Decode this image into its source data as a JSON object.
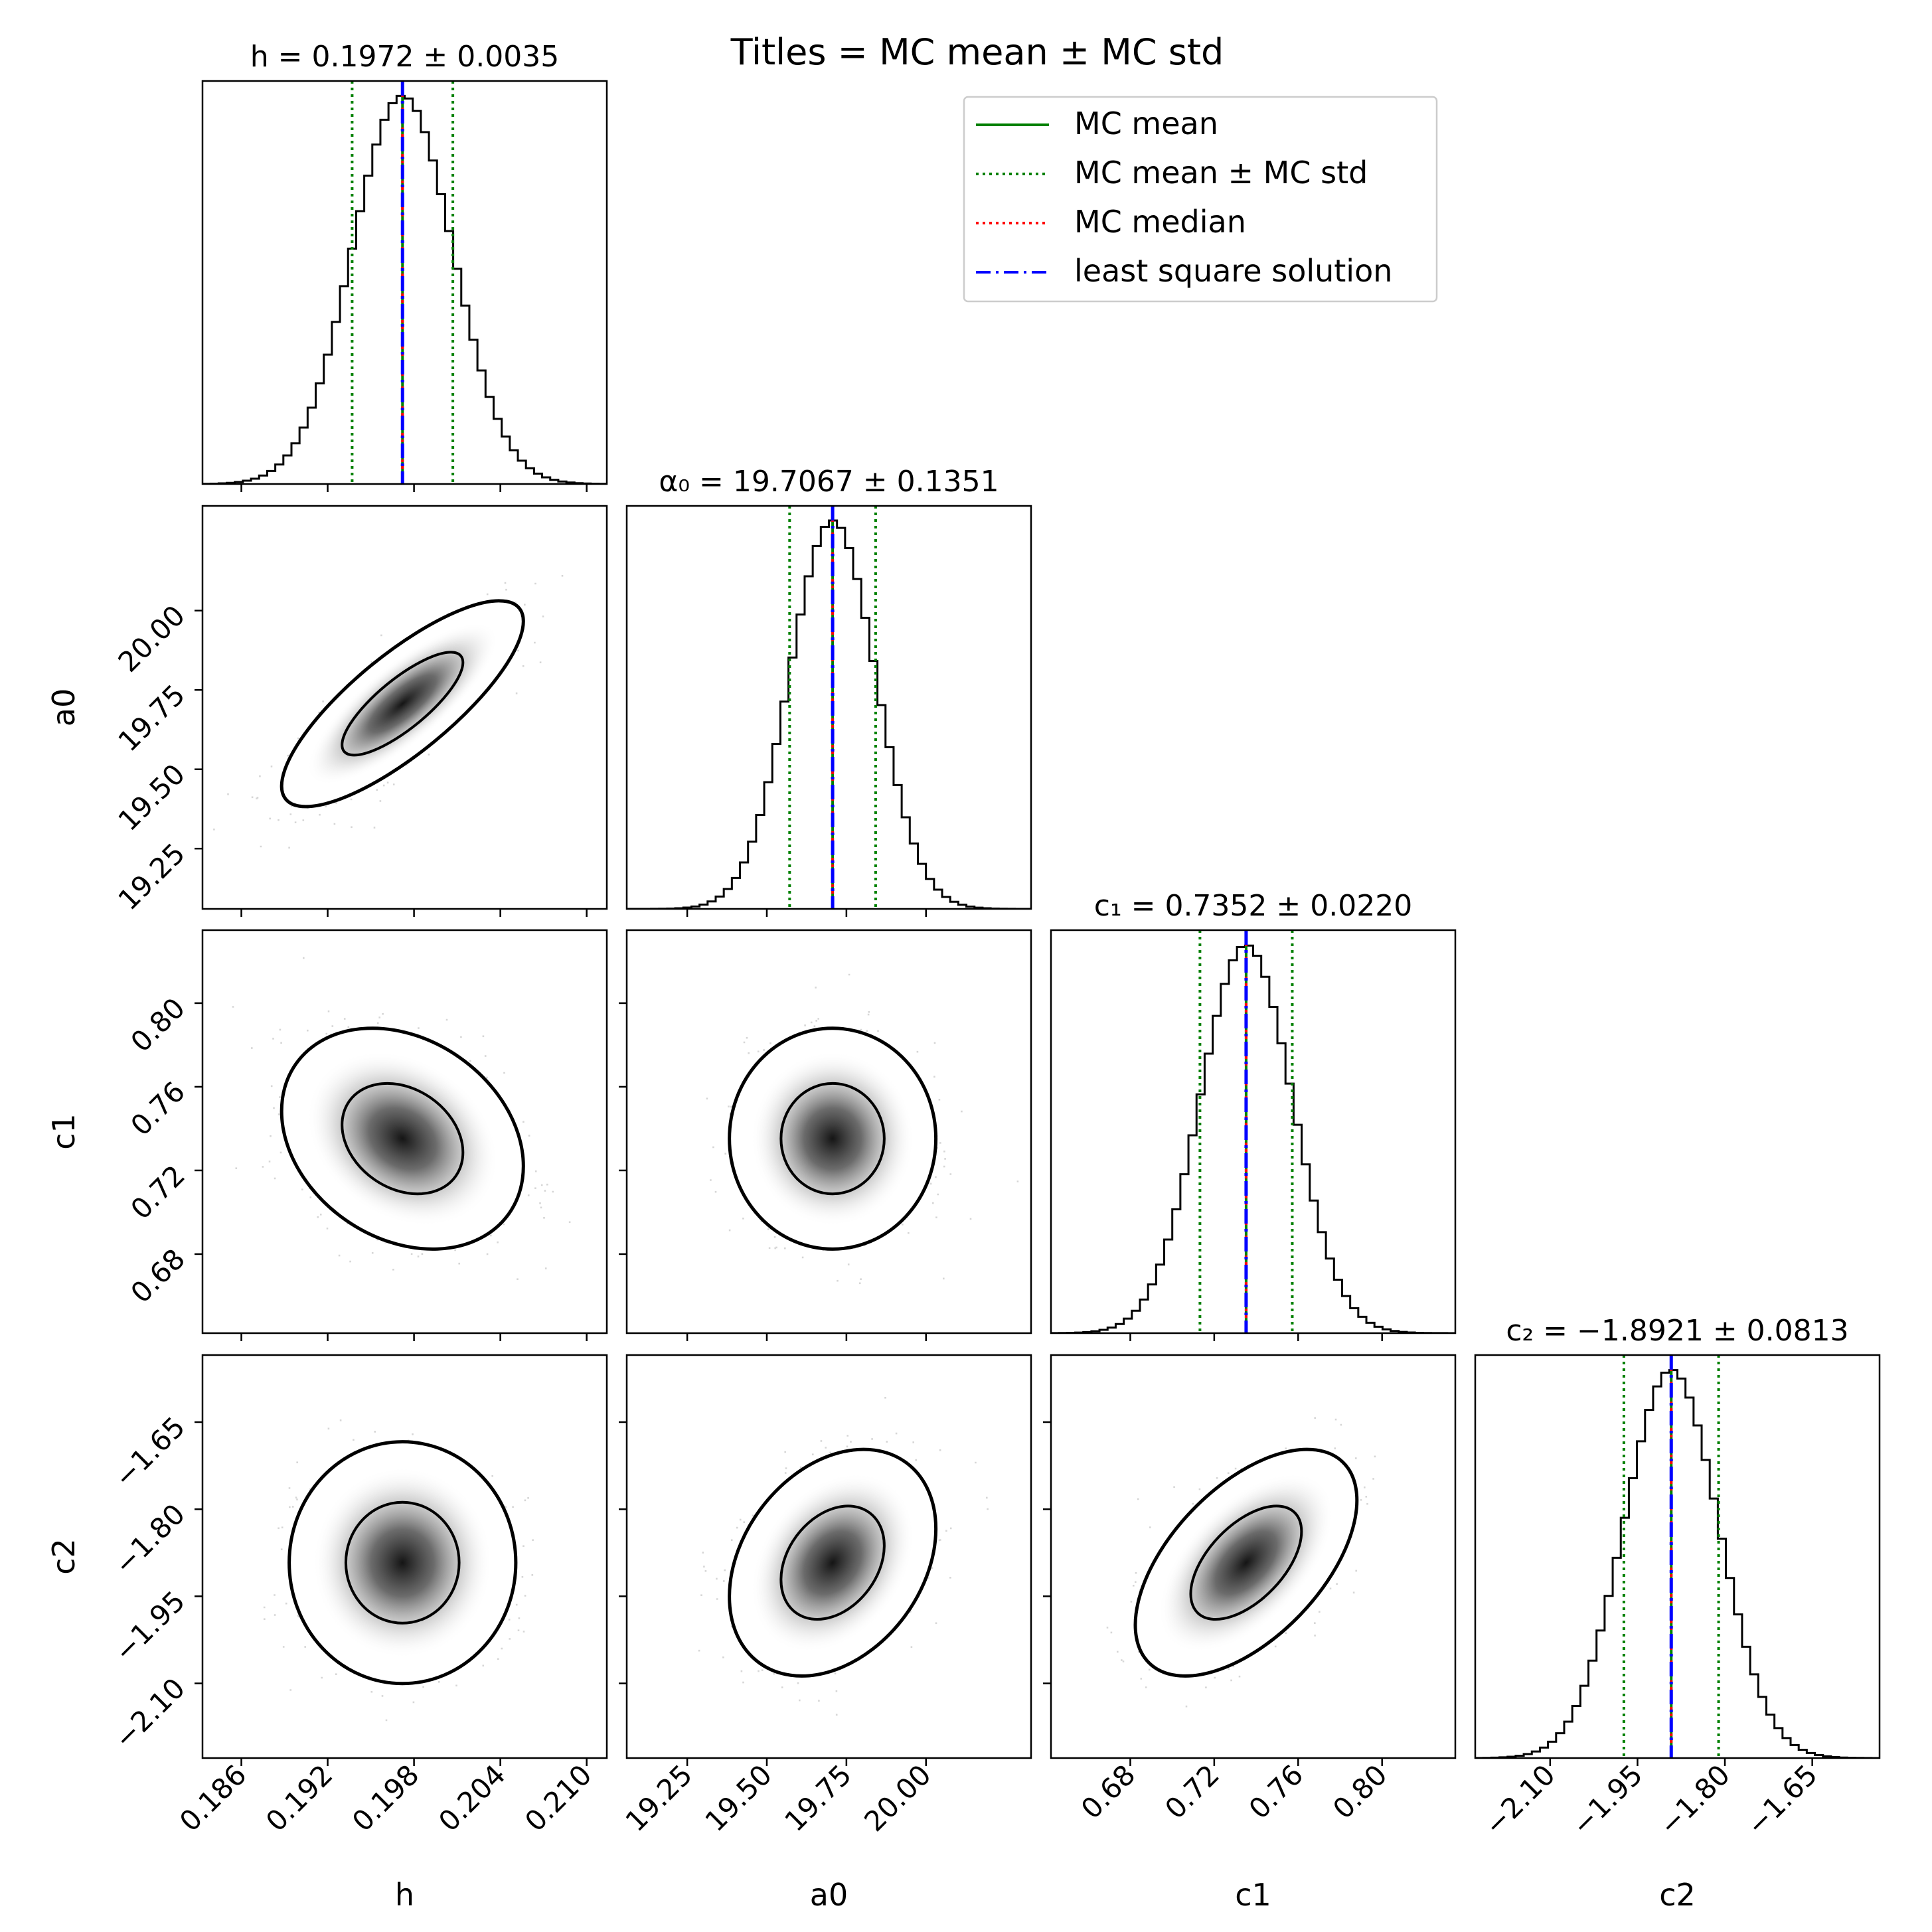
{
  "figure": {
    "suptitle": "Titles = MC mean ± MC std",
    "legend": {
      "placement": "top-right",
      "entries": [
        {
          "label": "MC mean",
          "color": "#008000",
          "style": "solid"
        },
        {
          "label": "MC mean ± MC std",
          "color": "#008000",
          "style": "dotted"
        },
        {
          "label": "MC median",
          "color": "#ff0000",
          "style": "dotted"
        },
        {
          "label": "least square solution",
          "color": "#0000ff",
          "style": "dashdot"
        }
      ]
    },
    "colors": {
      "mean": "#008000",
      "median": "#ff0000",
      "lsq": "#0000ff",
      "hist": "#000000",
      "contour": "#000000"
    }
  },
  "chart_data": {
    "type": "corner",
    "parameters": [
      {
        "key": "h",
        "label": "h",
        "title_prefix": "h = ",
        "title_value": "0.1972 ± 0.0035",
        "mean": 0.1972,
        "std": 0.0035,
        "range": [
          0.1833,
          0.2114
        ],
        "ticks": [
          0.186,
          0.192,
          0.198,
          0.204,
          0.21
        ],
        "tick_labels": [
          "0.186",
          "0.192",
          "0.198",
          "0.204",
          "0.210"
        ]
      },
      {
        "key": "a0",
        "label": "a0",
        "title_prefix": "α₀ = ",
        "title_value": "19.7067 ± 0.1351",
        "mean": 19.7067,
        "std": 0.1351,
        "range": [
          19.06,
          20.33
        ],
        "ticks": [
          19.25,
          19.5,
          19.75,
          20.0
        ],
        "tick_labels": [
          "19.25",
          "19.50",
          "19.75",
          "20.00"
        ]
      },
      {
        "key": "c1",
        "label": "c1",
        "title_prefix": "c₁ = ",
        "title_value": "0.7352 ± 0.0220",
        "mean": 0.7352,
        "std": 0.022,
        "range": [
          0.6422,
          0.8349
        ],
        "ticks": [
          0.68,
          0.72,
          0.76,
          0.8
        ],
        "tick_labels": [
          "0.68",
          "0.72",
          "0.76",
          "0.80"
        ]
      },
      {
        "key": "c2",
        "label": "c2",
        "title_prefix": "c₂ = ",
        "title_value": "−1.8921 ± 0.0813",
        "mean": -1.8921,
        "std": 0.0813,
        "range": [
          -2.2286,
          -1.5345
        ],
        "ticks": [
          -2.1,
          -1.95,
          -1.8,
          -1.65
        ],
        "tick_labels": [
          "−2.10",
          "−1.95",
          "−1.80",
          "−1.65"
        ]
      }
    ],
    "correlations": {
      "a0|h": 0.8,
      "c1|h": -0.25,
      "c1|a0": 0.0,
      "c2|h": 0.0,
      "c2|a0": 0.3,
      "c2|c1": 0.55
    },
    "contour_levels_sigma": [
      1,
      2
    ],
    "histogram_bins": 50,
    "samples_shown": true,
    "grid": false
  }
}
